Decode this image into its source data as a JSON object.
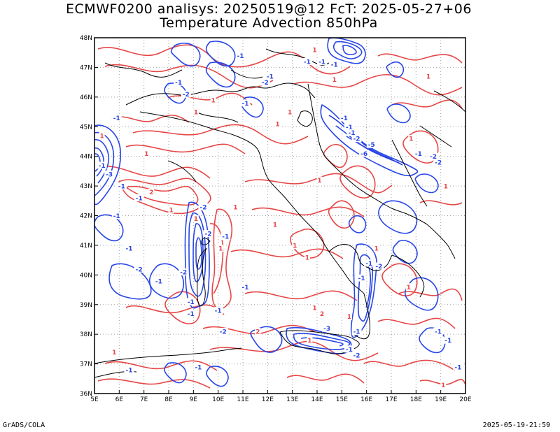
{
  "header": {
    "title_line_1": "ECMWF0200 analisys: 20250519@12 FcT: 2025-05-27+06",
    "title_line_2": "Temperature Advection 850hPa"
  },
  "footer": {
    "credit": "GrADS/COLA",
    "timestamp": "2025-05-19-21:59"
  },
  "map": {
    "lon_labels": [
      "5E",
      "6E",
      "7E",
      "8E",
      "9E",
      "10E",
      "11E",
      "12E",
      "13E",
      "14E",
      "15E",
      "16E",
      "17E",
      "18E",
      "19E",
      "20E"
    ],
    "lat_labels": [
      "36N",
      "37N",
      "38N",
      "39N",
      "40N",
      "41N",
      "42N",
      "43N",
      "44N",
      "45N",
      "46N",
      "47N",
      "48N"
    ],
    "colors": {
      "positive_contour": "#e64646",
      "negative_contour": "#2846e6",
      "coastline": "#000000",
      "grid": "#a0a0a0"
    },
    "contour_labels": [
      {
        "text": "1",
        "sign": "positive",
        "lon": 5.3,
        "lat": 44.7
      },
      {
        "text": "-1",
        "sign": "negative",
        "lon": 5.9,
        "lat": 45.3
      },
      {
        "text": "1",
        "sign": "positive",
        "lon": 7.1,
        "lat": 44.1
      },
      {
        "text": "-1",
        "sign": "negative",
        "lon": 8.4,
        "lat": 46.5
      },
      {
        "text": "-2",
        "sign": "negative",
        "lon": 8.7,
        "lat": 46.1
      },
      {
        "text": "1",
        "sign": "positive",
        "lon": 9.1,
        "lat": 45.5
      },
      {
        "text": "1",
        "sign": "positive",
        "lon": 9.8,
        "lat": 45.9
      },
      {
        "text": "-1",
        "sign": "negative",
        "lon": 10.9,
        "lat": 47.4
      },
      {
        "text": "-1",
        "sign": "negative",
        "lon": 11.1,
        "lat": 45.8
      },
      {
        "text": "-2",
        "sign": "negative",
        "lon": 11.9,
        "lat": 46.5
      },
      {
        "text": "-1",
        "sign": "negative",
        "lon": 12.1,
        "lat": 46.7
      },
      {
        "text": "-1",
        "sign": "negative",
        "lon": 13.6,
        "lat": 47.2
      },
      {
        "text": "1",
        "sign": "positive",
        "lon": 13.9,
        "lat": 47.6
      },
      {
        "text": "-1",
        "sign": "negative",
        "lon": 14.2,
        "lat": 47.2
      },
      {
        "text": "1",
        "sign": "positive",
        "lon": 14.7,
        "lat": 46.6
      },
      {
        "text": "-1",
        "sign": "negative",
        "lon": 14.7,
        "lat": 47.1
      },
      {
        "text": "-1",
        "sign": "negative",
        "lon": 15.1,
        "lat": 45.3
      },
      {
        "text": "-1",
        "sign": "negative",
        "lon": 15.3,
        "lat": 45.0
      },
      {
        "text": "-1",
        "sign": "negative",
        "lon": 15.4,
        "lat": 44.8
      },
      {
        "text": "-2",
        "sign": "negative",
        "lon": 15.6,
        "lat": 44.6
      },
      {
        "text": "-6",
        "sign": "negative",
        "lon": 15.9,
        "lat": 44.1
      },
      {
        "text": "-5",
        "sign": "negative",
        "lon": 16.2,
        "lat": 44.4
      },
      {
        "text": "1",
        "sign": "positive",
        "lon": 18.5,
        "lat": 46.7
      },
      {
        "text": "1",
        "sign": "positive",
        "lon": 17.8,
        "lat": 44.6
      },
      {
        "text": "-1",
        "sign": "negative",
        "lon": 18.1,
        "lat": 44.1
      },
      {
        "text": "-2",
        "sign": "negative",
        "lon": 18.7,
        "lat": 44.0
      },
      {
        "text": "-2",
        "sign": "negative",
        "lon": 18.9,
        "lat": 43.8
      },
      {
        "text": "1",
        "sign": "positive",
        "lon": 19.2,
        "lat": 43.0
      },
      {
        "text": "1",
        "sign": "positive",
        "lon": 12.9,
        "lat": 45.5
      },
      {
        "text": "1",
        "sign": "positive",
        "lon": 12.4,
        "lat": 45.1
      },
      {
        "text": "1",
        "sign": "positive",
        "lon": 14.1,
        "lat": 43.2
      },
      {
        "text": "-1",
        "sign": "negative",
        "lon": 5.3,
        "lat": 43.7
      },
      {
        "text": "-3",
        "sign": "negative",
        "lon": 5.6,
        "lat": 43.4
      },
      {
        "text": "-1",
        "sign": "negative",
        "lon": 6.1,
        "lat": 43.0
      },
      {
        "text": "-1",
        "sign": "negative",
        "lon": 6.8,
        "lat": 42.6
      },
      {
        "text": "2",
        "sign": "positive",
        "lon": 7.3,
        "lat": 42.8
      },
      {
        "text": "1",
        "sign": "positive",
        "lon": 8.1,
        "lat": 42.2
      },
      {
        "text": "-2",
        "sign": "negative",
        "lon": 9.4,
        "lat": 42.3
      },
      {
        "text": "1",
        "sign": "positive",
        "lon": 9.1,
        "lat": 41.9
      },
      {
        "text": "-2",
        "sign": "negative",
        "lon": 9.6,
        "lat": 41.4
      },
      {
        "text": "-1",
        "sign": "negative",
        "lon": 10.3,
        "lat": 41.3
      },
      {
        "text": "-1",
        "sign": "negative",
        "lon": 5.9,
        "lat": 42.0
      },
      {
        "text": "-1",
        "sign": "negative",
        "lon": 6.4,
        "lat": 40.9
      },
      {
        "text": "-2",
        "sign": "negative",
        "lon": 6.8,
        "lat": 40.2
      },
      {
        "text": "-1",
        "sign": "negative",
        "lon": 7.6,
        "lat": 39.8
      },
      {
        "text": "-2",
        "sign": "negative",
        "lon": 8.6,
        "lat": 40.1
      },
      {
        "text": "-1",
        "sign": "negative",
        "lon": 8.9,
        "lat": 39.1
      },
      {
        "text": "-1",
        "sign": "negative",
        "lon": 8.9,
        "lat": 38.7
      },
      {
        "text": "-1",
        "sign": "negative",
        "lon": 10.0,
        "lat": 38.8
      },
      {
        "text": "-1",
        "sign": "negative",
        "lon": 11.1,
        "lat": 39.6
      },
      {
        "text": "1",
        "sign": "positive",
        "lon": 10.1,
        "lat": 40.9
      },
      {
        "text": "1",
        "sign": "positive",
        "lon": 12.3,
        "lat": 41.7
      },
      {
        "text": "1",
        "sign": "positive",
        "lon": 13.1,
        "lat": 41.0
      },
      {
        "text": "1",
        "sign": "positive",
        "lon": 13.6,
        "lat": 40.6
      },
      {
        "text": "1",
        "sign": "positive",
        "lon": 10.7,
        "lat": 42.3
      },
      {
        "text": "-1",
        "sign": "negative",
        "lon": 16.1,
        "lat": 40.4
      },
      {
        "text": "-2",
        "sign": "negative",
        "lon": 16.5,
        "lat": 40.3
      },
      {
        "text": "-1",
        "sign": "negative",
        "lon": 15.8,
        "lat": 39.9
      },
      {
        "text": "1",
        "sign": "positive",
        "lon": 16.4,
        "lat": 40.9
      },
      {
        "text": "1",
        "sign": "positive",
        "lon": 17.7,
        "lat": 39.6
      },
      {
        "text": "2",
        "sign": "positive",
        "lon": 11.6,
        "lat": 38.1
      },
      {
        "text": "-2",
        "sign": "negative",
        "lon": 10.2,
        "lat": 38.1
      },
      {
        "text": "-3",
        "sign": "negative",
        "lon": 14.4,
        "lat": 38.2
      },
      {
        "text": "-1",
        "sign": "negative",
        "lon": 15.6,
        "lat": 38.1
      },
      {
        "text": "1",
        "sign": "positive",
        "lon": 15.3,
        "lat": 38.6
      },
      {
        "text": "-1",
        "sign": "negative",
        "lon": 18.9,
        "lat": 38.1
      },
      {
        "text": "-1",
        "sign": "negative",
        "lon": 19.3,
        "lat": 37.8
      },
      {
        "text": "1",
        "sign": "positive",
        "lon": 13.7,
        "lat": 37.8
      },
      {
        "text": "1",
        "sign": "positive",
        "lon": 13.9,
        "lat": 38.9
      },
      {
        "text": "2",
        "sign": "positive",
        "lon": 14.2,
        "lat": 38.7
      },
      {
        "text": "-1",
        "sign": "negative",
        "lon": 15.3,
        "lat": 37.5
      },
      {
        "text": "-2",
        "sign": "negative",
        "lon": 15.6,
        "lat": 37.3
      },
      {
        "text": "1",
        "sign": "positive",
        "lon": 5.8,
        "lat": 37.4
      },
      {
        "text": "-1",
        "sign": "negative",
        "lon": 6.4,
        "lat": 36.8
      },
      {
        "text": "-1",
        "sign": "negative",
        "lon": 9.2,
        "lat": 36.9
      },
      {
        "text": "-1",
        "sign": "negative",
        "lon": 19.7,
        "lat": 36.9
      },
      {
        "text": "1",
        "sign": "positive",
        "lon": 19.1,
        "lat": 36.3
      }
    ]
  }
}
